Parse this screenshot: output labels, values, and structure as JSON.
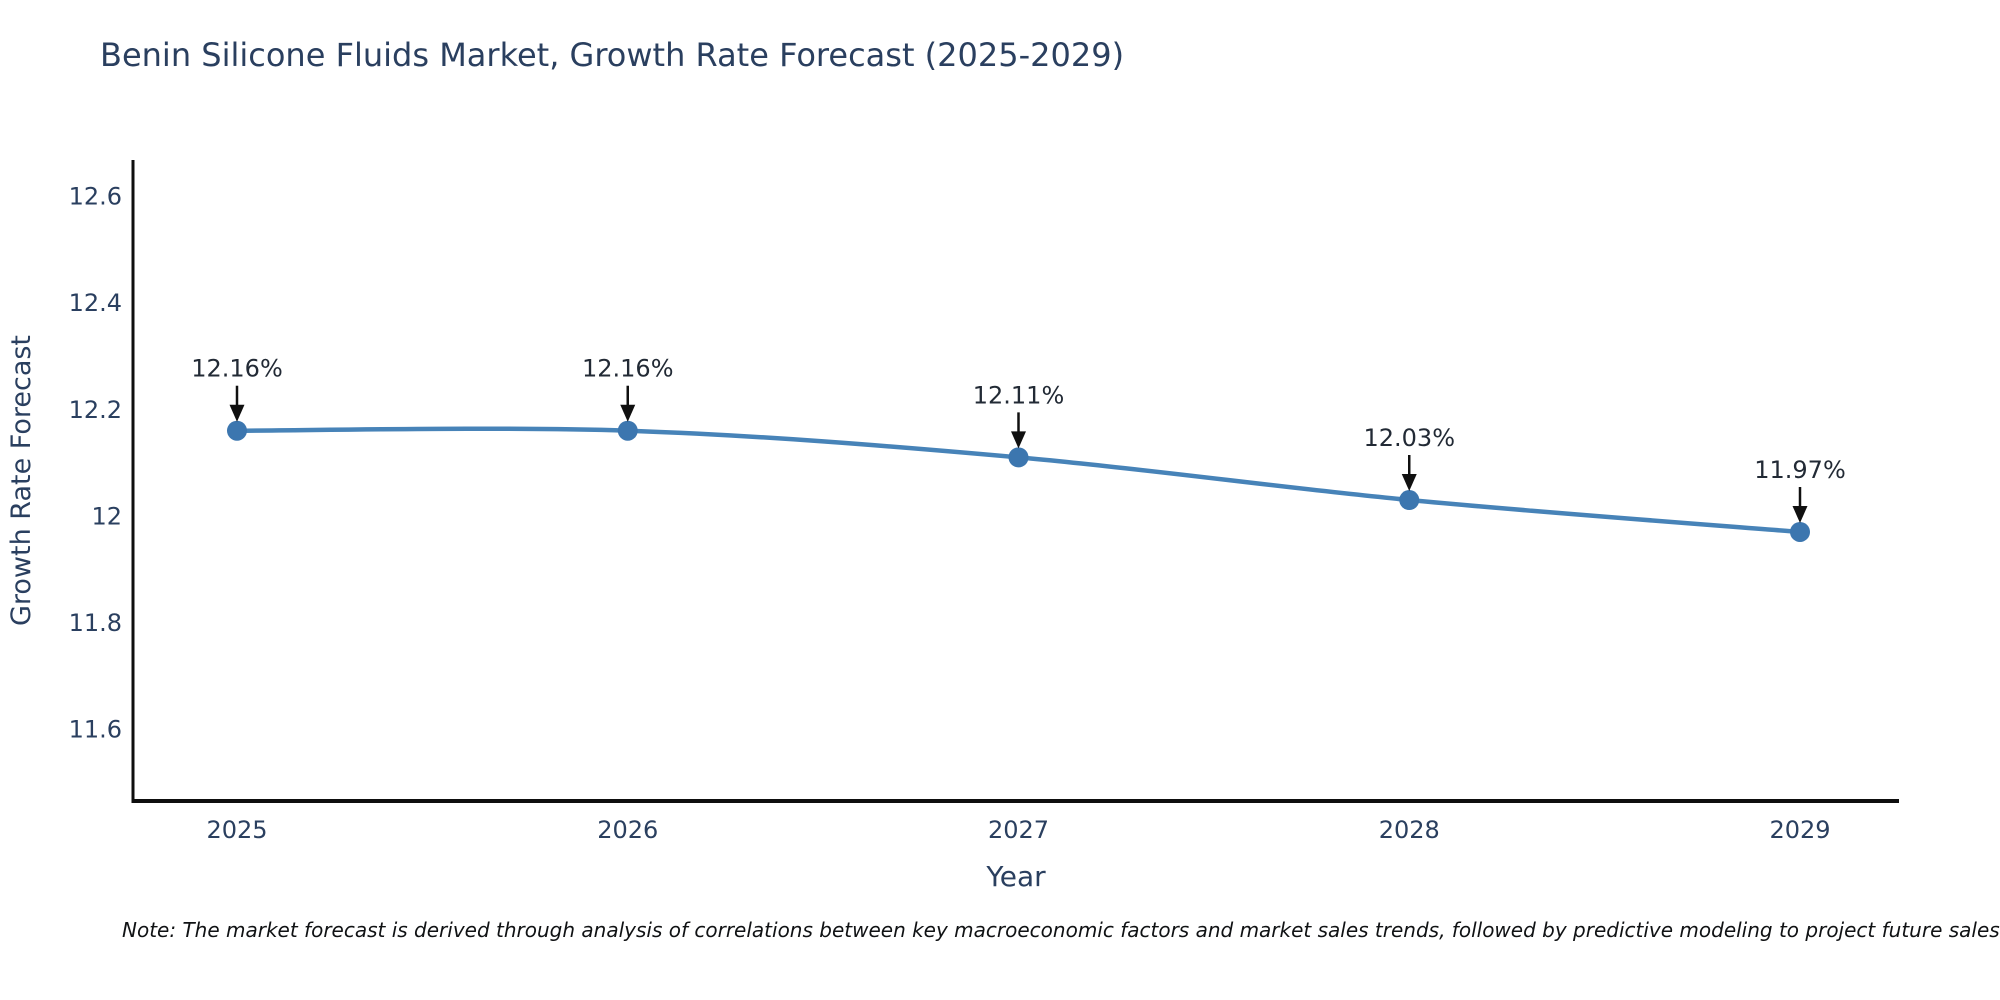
{
  "note": "Note: The market forecast is derived through analysis of correlations between key macroeconomic factors and market sales trends, followed by predictive modeling to project future sales",
  "colors": {
    "title_text": "#2a3f5f",
    "axis_text": "#2a3f5f",
    "axis_line": "#0e0e0e",
    "series_line": "#4783b8",
    "marker_fill": "#3c76af",
    "annotation_text": "#222a35",
    "arrow": "#101010",
    "background": "#ffffff"
  },
  "chart_data": {
    "type": "line",
    "title": "Benin Silicone Fluids Market, Growth Rate Forecast (2025-2029)",
    "categories": [
      "2025",
      "2026",
      "2027",
      "2028",
      "2029"
    ],
    "series": [
      {
        "name": "Growth Rate Forecast",
        "values": [
          12.16,
          12.16,
          12.11,
          12.03,
          11.97
        ],
        "point_labels": [
          "12.16%",
          "12.16%",
          "12.11%",
          "12.03%",
          "11.97%"
        ]
      }
    ],
    "xlabel": "Year",
    "ylabel": "Growth Rate Forecast",
    "yticks": [
      {
        "value": 12.6,
        "label": "12.6"
      },
      {
        "value": 12.4,
        "label": "12.4"
      },
      {
        "value": 12.2,
        "label": "12.2"
      },
      {
        "value": 12.0,
        "label": "12"
      },
      {
        "value": 11.8,
        "label": "11.8"
      },
      {
        "value": 11.6,
        "label": "11.6"
      }
    ],
    "ylim": [
      11.465,
      12.668
    ],
    "grid": false,
    "legend_position": "none",
    "line_shape": "spline",
    "marker": "circle",
    "annotations": "value labels with down arrows above each point"
  }
}
